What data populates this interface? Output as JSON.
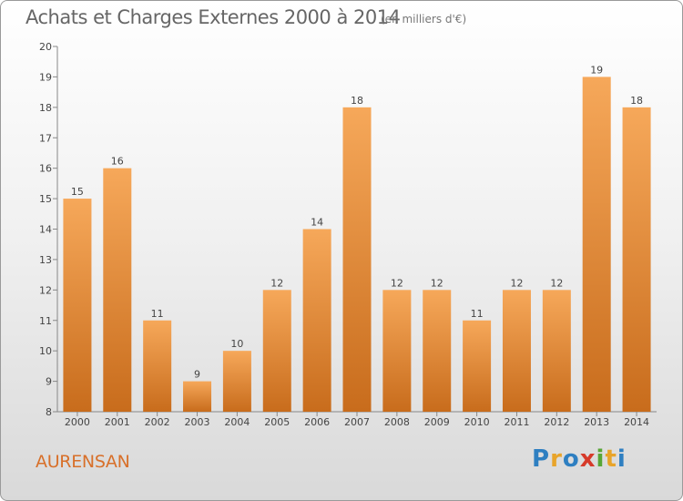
{
  "page": {
    "title": "Achats et Charges Externes 2000 à 2014",
    "subtitle": "(en milliers d'€)",
    "commune": "AURENSAN",
    "logo_letters": [
      {
        "char": "P",
        "color": "#2e7fc1"
      },
      {
        "char": "r",
        "color": "#e8a42a"
      },
      {
        "char": "o",
        "color": "#2e7fc1"
      },
      {
        "char": "x",
        "color": "#d63a2a"
      },
      {
        "char": "i",
        "color": "#58a636"
      },
      {
        "char": "t",
        "color": "#e8a42a"
      },
      {
        "char": "i",
        "color": "#2e7fc1"
      }
    ]
  },
  "chart_data": {
    "type": "bar",
    "title": "Achats et Charges Externes 2000 à 2014",
    "subtitle": "(en milliers d'€)",
    "categories": [
      "2000",
      "2001",
      "2002",
      "2003",
      "2004",
      "2005",
      "2006",
      "2007",
      "2008",
      "2009",
      "2010",
      "2011",
      "2012",
      "2013",
      "2014"
    ],
    "values": [
      15,
      16,
      11,
      9,
      10,
      12,
      14,
      18,
      12,
      12,
      11,
      12,
      12,
      19,
      18
    ],
    "ylim": [
      8,
      20
    ],
    "yticks": [
      8,
      9,
      10,
      11,
      12,
      13,
      14,
      15,
      16,
      17,
      18,
      19,
      20
    ],
    "grid": false,
    "legend": "none",
    "bar_color_top": "#f6a85a",
    "bar_color_bottom": "#c86c1c"
  }
}
